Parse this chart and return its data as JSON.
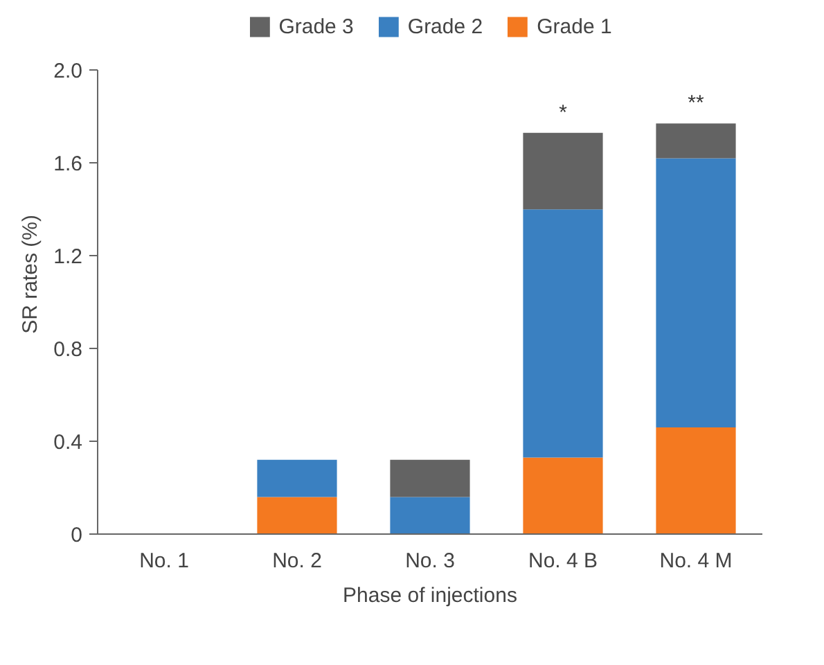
{
  "chart_data": {
    "type": "bar",
    "stacked": true,
    "xlabel": "Phase of injections",
    "ylabel": "SR rates (%)",
    "categories": [
      "No. 1",
      "No. 2",
      "No. 3",
      "No. 4 B",
      "No. 4 M"
    ],
    "series": [
      {
        "name": "Grade 1",
        "color": "#f47920",
        "values": [
          0,
          0.16,
          0,
          0.33,
          0.46
        ]
      },
      {
        "name": "Grade 2",
        "color": "#3a80c1",
        "values": [
          0,
          0.16,
          0.16,
          1.07,
          1.16
        ]
      },
      {
        "name": "Grade 3",
        "color": "#636363",
        "values": [
          0,
          0,
          0.16,
          0.33,
          0.15
        ]
      }
    ],
    "ylim": [
      0,
      2.0
    ],
    "yticks": [
      0,
      {
        "value": 0.4,
        "label": "0.4"
      },
      {
        "value": 0.8,
        "label": "0.8"
      },
      {
        "value": 1.2,
        "label": "1.2"
      },
      {
        "value": 1.6,
        "label": "1.6"
      },
      {
        "value": 2.0,
        "label": "2.0"
      }
    ],
    "grid": false,
    "legend": "top",
    "annotations": [
      {
        "text": "*",
        "x": "No. 4 B",
        "y": 1.73
      },
      {
        "text": "**",
        "x": "No. 4 M",
        "y": 1.77
      }
    ]
  }
}
